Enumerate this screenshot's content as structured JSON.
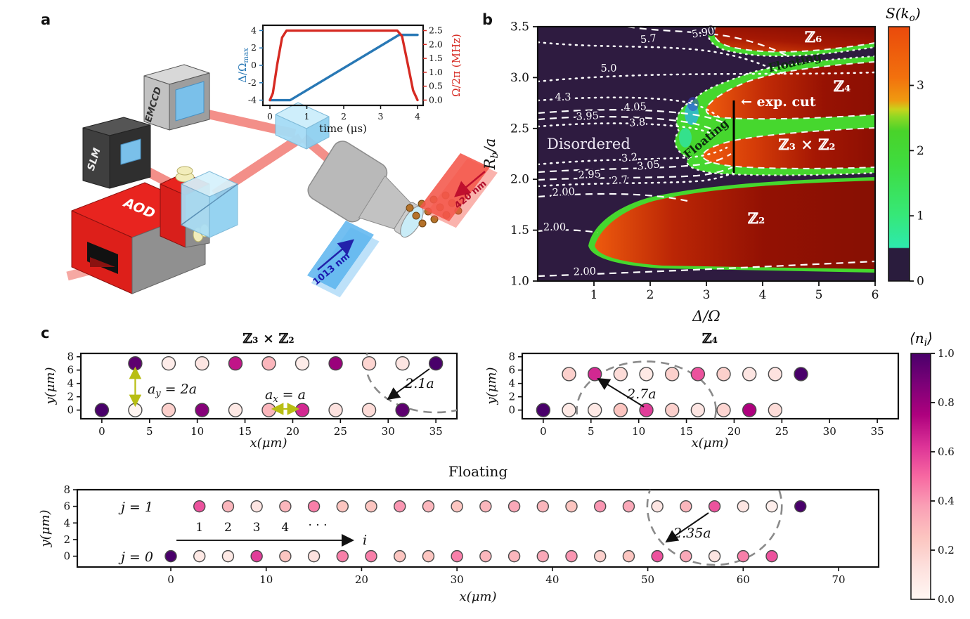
{
  "panel_letters": {
    "a": "a",
    "b": "b",
    "c": "c"
  },
  "colors": {
    "phase_bg_purple": "#2e1b40",
    "lobe_dark_red": "#8c0f03",
    "lobe_orange": "#ee5a0e",
    "band_green": "#46d72e",
    "band_teal": "#30e3a4",
    "delta_line_blue": "#2878b5",
    "omega_line_red": "#d62a22",
    "annotation_yellow": "#c2c81e",
    "dashed_circle_gray": "#8a8a8a",
    "beam_red": "#f2837c",
    "device_red": "#e8241f",
    "optics_blue": "#aadef6",
    "atom_brown": "#b5722a",
    "sheet_red": "#f4574a",
    "sheet_blue": "#5ab4ef",
    "rdpu_stops": [
      [
        0,
        "#fff7f3"
      ],
      [
        0.13,
        "#fde0dd"
      ],
      [
        0.25,
        "#fcc5c0"
      ],
      [
        0.38,
        "#fa9fb5"
      ],
      [
        0.5,
        "#f768a1"
      ],
      [
        0.62,
        "#dd3497"
      ],
      [
        0.75,
        "#ae017e"
      ],
      [
        0.88,
        "#7a0177"
      ],
      [
        1,
        "#49006a"
      ]
    ],
    "sko_stops": [
      [
        0,
        "#2a1c3d"
      ],
      [
        0.128,
        "#2a1c3d"
      ],
      [
        0.132,
        "#2de9ad"
      ],
      [
        0.26,
        "#36e878"
      ],
      [
        0.46,
        "#3fdc3f"
      ],
      [
        0.59,
        "#49d32a"
      ],
      [
        0.645,
        "#8ed824"
      ],
      [
        0.675,
        "#c8d31c"
      ],
      [
        0.71,
        "#ef9a10"
      ],
      [
        0.8,
        "#f2710d"
      ],
      [
        1,
        "#ea4a0c"
      ]
    ]
  },
  "panel_a": {
    "devices": {
      "slm": "SLM",
      "emccd": "EMCCD",
      "aod": "AOD"
    },
    "beams": {
      "red_420": "420 nm",
      "blue_1013": "1013 nm"
    }
  },
  "panel_c": {
    "colorbar": {
      "label": {
        "pre": "⟨n",
        "sub": "i",
        "post": "⟩"
      },
      "ticks": [
        "1.0",
        "0.8",
        "0.6",
        "0.4",
        "0.2",
        "0.0"
      ]
    }
  },
  "chart_data": [
    {
      "id": "pulse",
      "type": "line",
      "xlabel": "time (μs)",
      "ylabel_left": {
        "pre": "Δ/Ω",
        "sub": "max"
      },
      "ylabel_right": "Ω/2π (MHz)",
      "xlim": [
        0,
        4
      ],
      "xticks": [
        "0",
        "1",
        "2",
        "3",
        "4"
      ],
      "y_left": {
        "lim": [
          -4.6,
          4.6
        ],
        "ticks": [
          "4",
          "2",
          "0",
          "-2",
          "-4"
        ]
      },
      "y_right": {
        "lim": [
          -0.19,
          2.69
        ],
        "ticks": [
          "2.5",
          "2.0",
          "1.5",
          "1.0",
          "0.5",
          "0.0"
        ]
      },
      "series": [
        {
          "name": "detuning",
          "axis": "left",
          "color": "#2878b5",
          "x": [
            0,
            0.55,
            3.5,
            4.0
          ],
          "y": [
            -4,
            -4,
            3.5,
            3.5
          ]
        },
        {
          "name": "rabi-frequency",
          "axis": "right",
          "color": "#d62a22",
          "x": [
            0,
            0.08,
            0.2,
            0.33,
            0.45,
            3.45,
            3.58,
            3.72,
            3.88,
            4.0
          ],
          "y": [
            0,
            0.25,
            1.3,
            2.25,
            2.5,
            2.5,
            2.3,
            1.4,
            0.35,
            0
          ]
        }
      ]
    },
    {
      "id": "phase",
      "type": "heatmap",
      "xlabel": "Δ/Ω",
      "ylabel": {
        "pre": "R",
        "sub": "b",
        "post": "/a"
      },
      "xlim": [
        0,
        6
      ],
      "ylim": [
        1.0,
        3.5
      ],
      "xticks": [
        "1",
        "2",
        "3",
        "4",
        "5",
        "6"
      ],
      "yticks": [
        "3.5",
        "3.0",
        "2.5",
        "2.0",
        "1.5",
        "1.0"
      ],
      "colorbar": {
        "label": {
          "pre": "S(k",
          "sub": "o",
          "post": ")"
        },
        "ticks": [
          "3",
          "2",
          "1",
          "0"
        ],
        "range": [
          0,
          3.9
        ]
      },
      "regions": [
        {
          "name": "Disordered"
        },
        {
          "name": "ℤ₂"
        },
        {
          "name": "ℤ₃ × ℤ₂"
        },
        {
          "name": "ℤ₄"
        },
        {
          "name": "ℤ₆"
        },
        {
          "name": "Floating"
        },
        {
          "name": "Floating"
        }
      ],
      "exp_cut": {
        "label": "← exp. cut",
        "x": 3.45,
        "y_from": 2.08,
        "y_to": 2.78
      },
      "contours": [
        {
          "label": "5.90",
          "style": "dashed"
        },
        {
          "label": "5.7",
          "style": "dotted"
        },
        {
          "label": "5.0",
          "style": "dotted"
        },
        {
          "label": "4.3",
          "style": "dotted"
        },
        {
          "label": "4.05",
          "style": "dashed"
        },
        {
          "label": "3.95",
          "style": "dashed"
        },
        {
          "label": "3.8",
          "style": "dotted"
        },
        {
          "label": "3.2",
          "style": "dotted"
        },
        {
          "label": "3.05",
          "style": "dashed"
        },
        {
          "label": "2.95",
          "style": "dashed"
        },
        {
          "label": "2.7",
          "style": "dotted"
        },
        {
          "label": "2.00",
          "style": "dashed"
        },
        {
          "label": "2.00",
          "style": "dashed"
        },
        {
          "label": "2.00",
          "style": "dashed"
        }
      ]
    },
    {
      "id": "c1",
      "type": "scatter",
      "title": "ℤ₃ × ℤ₂",
      "xlabel": "x(μm)",
      "ylabel": "y(μm)",
      "xlim": [
        -2.2,
        37.2
      ],
      "ylim": [
        -1.3,
        8.5
      ],
      "xticks": [
        0,
        5,
        10,
        15,
        20,
        25,
        30,
        35
      ],
      "yticks": [
        0,
        2,
        4,
        6,
        8
      ],
      "rows": [
        {
          "y": 7,
          "x": [
            3.5,
            7,
            10.5,
            14,
            17.5,
            21,
            24.5,
            28,
            31.5,
            35
          ],
          "values": [
            0.95,
            0.06,
            0.1,
            0.7,
            0.3,
            0.06,
            0.8,
            0.18,
            0.1,
            1.0
          ]
        },
        {
          "y": 0,
          "x": [
            0,
            3.5,
            7,
            10.5,
            14,
            17.5,
            21,
            24.5,
            28,
            31.5
          ],
          "values": [
            1.0,
            0.01,
            0.2,
            0.85,
            0.08,
            0.3,
            0.65,
            0.12,
            0.15,
            0.95
          ]
        }
      ],
      "annotations": {
        "ay": {
          "pre": "a",
          "sub": "y",
          "post": " = 2a"
        },
        "ax": {
          "pre": "a",
          "sub": "x",
          "post": " = a"
        },
        "radius_label": "2.1a",
        "circle": {
          "cx": 35,
          "cy": 7,
          "r": 7.35
        }
      }
    },
    {
      "id": "c2",
      "type": "scatter",
      "title": "ℤ₄",
      "xlabel": "x(μm)",
      "ylabel": "y(μm)",
      "xlim": [
        -2.2,
        37.2
      ],
      "ylim": [
        -1.3,
        8.5
      ],
      "xticks": [
        0,
        5,
        10,
        15,
        20,
        25,
        30,
        35
      ],
      "yticks": [
        0,
        2,
        4,
        6,
        8
      ],
      "rows": [
        {
          "y": 5.4,
          "x": [
            2.7,
            5.4,
            8.1,
            10.8,
            13.5,
            16.2,
            18.9,
            21.6,
            24.3,
            27
          ],
          "values": [
            0.2,
            0.65,
            0.15,
            0.08,
            0.2,
            0.55,
            0.2,
            0.1,
            0.12,
            1.0
          ]
        },
        {
          "y": 0,
          "x": [
            0,
            2.7,
            5.4,
            8.1,
            10.8,
            13.5,
            16.2,
            18.9,
            21.6,
            24.3
          ],
          "values": [
            1.0,
            0.08,
            0.08,
            0.25,
            0.6,
            0.2,
            0.1,
            0.18,
            0.75,
            0.15
          ]
        }
      ],
      "annotations": {
        "radius_label": "2.7a",
        "circle": {
          "cx": 10.8,
          "cy": 0,
          "r": 7.29
        }
      }
    },
    {
      "id": "c3",
      "type": "scatter",
      "title": "Floating",
      "xlabel": "x(μm)",
      "ylabel": "y(μm)",
      "xlim": [
        -9.8,
        74.2
      ],
      "ylim": [
        -1.3,
        8.0
      ],
      "xticks": [
        0,
        10,
        20,
        30,
        40,
        50,
        60,
        70
      ],
      "yticks": [
        0,
        2,
        4,
        6,
        8
      ],
      "rows": [
        {
          "y": 6,
          "x": [
            3,
            6,
            9,
            12,
            15,
            18,
            21,
            24,
            27,
            30,
            33,
            36,
            39,
            42,
            45,
            48,
            51,
            54,
            57,
            60,
            63,
            66
          ],
          "values": [
            0.55,
            0.3,
            0.1,
            0.3,
            0.45,
            0.25,
            0.25,
            0.4,
            0.3,
            0.25,
            0.3,
            0.35,
            0.3,
            0.25,
            0.4,
            0.35,
            0.1,
            0.3,
            0.55,
            0.1,
            0.05,
            1.0
          ]
        },
        {
          "y": 0,
          "x": [
            0,
            3,
            6,
            9,
            12,
            15,
            18,
            21,
            24,
            27,
            30,
            33,
            36,
            39,
            42,
            45,
            48,
            51,
            54,
            57,
            60,
            63
          ],
          "values": [
            1.0,
            0.08,
            0.08,
            0.6,
            0.25,
            0.12,
            0.45,
            0.45,
            0.25,
            0.25,
            0.45,
            0.3,
            0.3,
            0.35,
            0.4,
            0.2,
            0.25,
            0.55,
            0.35,
            0.1,
            0.45,
            0.55
          ]
        }
      ],
      "annotations": {
        "row_top": "j = 1",
        "row_bottom": "j = 0",
        "index_numbers": [
          "1",
          "2",
          "3",
          "4"
        ],
        "index_dots": "· · ·",
        "index_arrow_label": "i",
        "radius_label": "2.35a",
        "circle": {
          "cx": 57,
          "cy": 6,
          "r": 7.05
        }
      }
    }
  ]
}
